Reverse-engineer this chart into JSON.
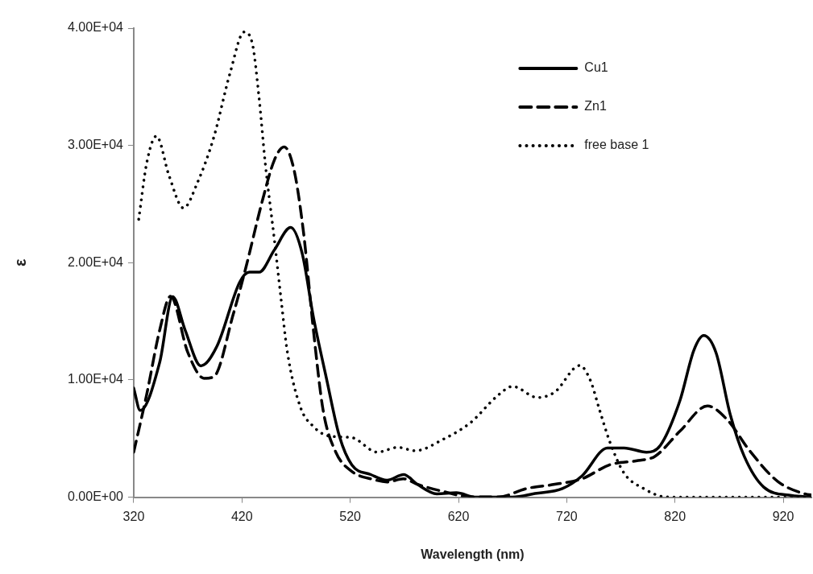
{
  "chart_data": {
    "type": "line",
    "xlabel": "Wavelength (nm)",
    "ylabel": "ε",
    "xlim": [
      320,
      946
    ],
    "xticks": [
      320,
      420,
      520,
      620,
      720,
      820,
      920
    ],
    "ylim": [
      0,
      40000
    ],
    "yticks": [
      {
        "value": 0,
        "label": "0.00E+00"
      },
      {
        "value": 10000,
        "label": "1.00E+04"
      },
      {
        "value": 20000,
        "label": "2.00E+04"
      },
      {
        "value": 30000,
        "label": "3.00E+04"
      },
      {
        "value": 40000,
        "label": "4.00E+04"
      }
    ],
    "grid": false,
    "legend": "top right",
    "marker": "none",
    "series": [
      {
        "name": "Cu1",
        "color": "#000000",
        "line_style": "solid",
        "x": [
          320,
          326,
          344,
          356,
          367.5,
          382,
          397,
          418,
          427,
          436,
          450,
          465,
          475.6,
          486,
          498,
          510,
          521.5,
          539,
          554,
          569.4,
          582,
          600,
          618,
          636,
          670,
          690.6,
          716,
          734,
          757.6,
          773,
          793.7,
          806.6,
          824.6,
          837.5,
          846.5,
          858,
          871,
          884,
          902,
          927.8,
          946
        ],
        "values": [
          9300,
          7400,
          11500,
          17100,
          14250,
          11200,
          12900,
          18360,
          19200,
          19200,
          21100,
          23000,
          20800,
          15350,
          10150,
          5200,
          2750,
          1930,
          1450,
          1930,
          1100,
          290,
          380,
          0,
          0,
          310,
          740,
          1810,
          4200,
          4200,
          3840,
          4440,
          8250,
          12550,
          13790,
          12300,
          7060,
          3480,
          860,
          140,
          20
        ]
      },
      {
        "name": "Zn1",
        "color": "#000000",
        "line_style": "dashed",
        "x": [
          320,
          332,
          344,
          354,
          370,
          385,
          394,
          412,
          424,
          438.6,
          450,
          459,
          468,
          477,
          486,
          495,
          506.7,
          521.5,
          542,
          554,
          569,
          582,
          605.5,
          631,
          657,
          683,
          709,
          734,
          760,
          786,
          801.4,
          824.6,
          850,
          868.5,
          889,
          915,
          940.6,
          946
        ],
        "values": [
          3840,
          8770,
          14250,
          17130,
          12340,
          10140,
          10280,
          15620,
          19730,
          25200,
          28770,
          29870,
          27950,
          22470,
          14250,
          7400,
          3840,
          2200,
          1500,
          1300,
          1570,
          1100,
          500,
          20,
          20,
          740,
          1100,
          1570,
          2770,
          3130,
          3480,
          5630,
          7780,
          6580,
          3960,
          1340,
          270,
          200
        ]
      },
      {
        "name": "free base 1",
        "color": "#000000",
        "line_style": "dotted",
        "x": [
          324.6,
          332,
          341,
          352.7,
          366,
          379,
          394,
          409,
          422,
          429.7,
          435.6,
          441.5,
          450,
          456,
          462,
          474,
          486,
          500.7,
          521.5,
          545,
          564,
          580,
          605.5,
          631,
          657,
          670,
          693,
          709,
          732,
          742,
          750,
          760,
          773,
          791,
          812,
          850,
          900,
          946
        ],
        "values": [
          23700,
          28500,
          30800,
          27400,
          24660,
          26860,
          30700,
          36170,
          39670,
          38630,
          34250,
          28500,
          21930,
          16990,
          12340,
          7680,
          6030,
          5210,
          5080,
          3840,
          4250,
          3960,
          4920,
          6350,
          8730,
          9450,
          8500,
          8970,
          11230,
          9930,
          7540,
          4670,
          2050,
          740,
          20,
          0,
          0,
          0
        ]
      }
    ]
  }
}
